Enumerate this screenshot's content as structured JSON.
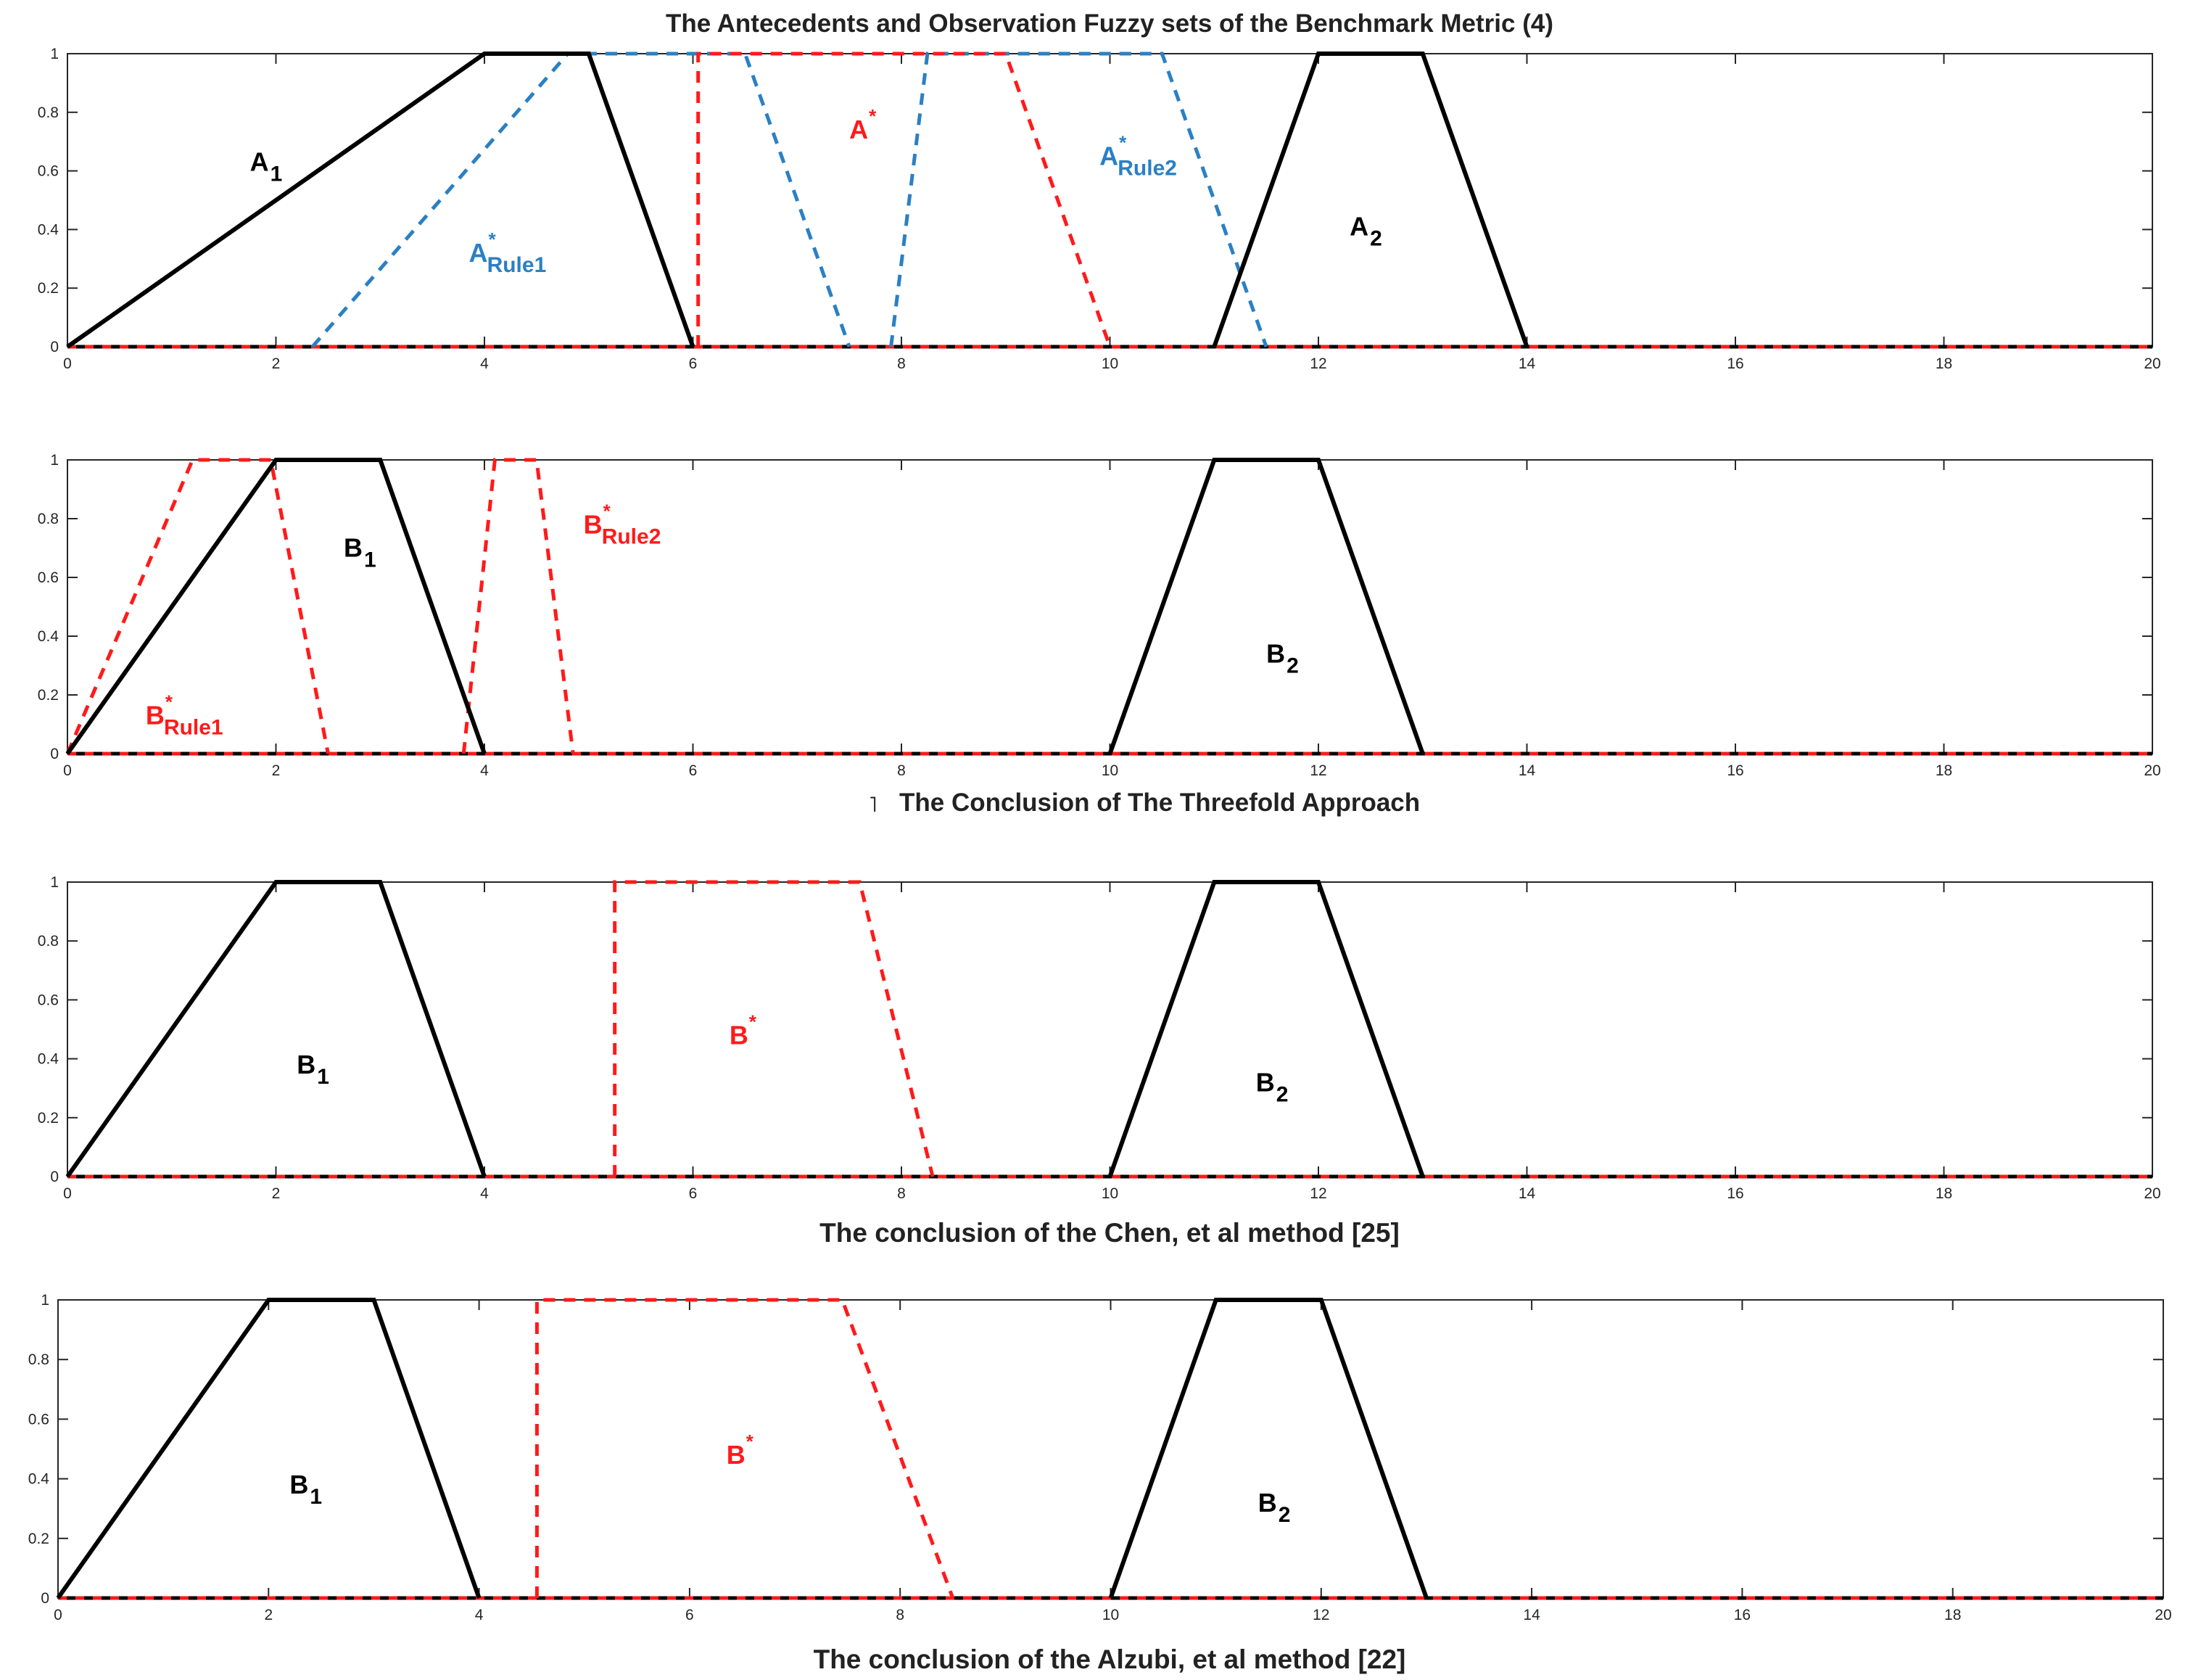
{
  "figure_title": "The Antecedents and Observation Fuzzy sets of the Benchmark Metric (4)",
  "colors": {
    "black_line": "#000000",
    "red_line": "#ff1a1a",
    "blue_line": "#2a80c4",
    "axis": "#262626"
  },
  "chart_data": [
    {
      "type": "line",
      "title": "The Antecedents and Observation Fuzzy sets of the Benchmark Metric (4)",
      "xlim": [
        0,
        20
      ],
      "ylim": [
        0,
        1
      ],
      "x_ticks": [
        "0",
        "2",
        "4",
        "6",
        "8",
        "10",
        "12",
        "14",
        "16",
        "18",
        "20"
      ],
      "y_ticks": [
        "0",
        "0.2",
        "0.4",
        "0.6",
        "0.8",
        "1"
      ],
      "series": [
        {
          "key": "A1",
          "style": "solid",
          "color": "black",
          "x": [
            0,
            4,
            5,
            6
          ],
          "y": [
            0,
            1,
            1,
            0
          ]
        },
        {
          "key": "A2",
          "style": "solid",
          "color": "black",
          "x": [
            11,
            12,
            13,
            14
          ],
          "y": [
            0,
            1,
            1,
            0
          ]
        },
        {
          "key": "A*Rule1",
          "style": "dashed",
          "color": "blue",
          "x": [
            2.35,
            4.8,
            6.5,
            7.5
          ],
          "y": [
            0,
            1,
            1,
            0
          ]
        },
        {
          "key": "A*Rule2",
          "style": "dashed",
          "color": "blue",
          "x": [
            7.9,
            8.25,
            10.5,
            11.5
          ],
          "y": [
            0,
            1,
            1,
            0
          ]
        },
        {
          "key": "A*",
          "style": "dashed",
          "color": "red",
          "x": [
            6.05,
            6.05,
            9.0,
            10.0
          ],
          "y": [
            0,
            1,
            1,
            0
          ]
        }
      ],
      "baseline": {
        "x": [
          0,
          20
        ],
        "y": [
          0,
          0
        ]
      },
      "labels": [
        {
          "main": "A",
          "sub": "1",
          "sup": "",
          "color": "black",
          "x": 1.75,
          "y": 0.6
        },
        {
          "main": "A",
          "sub": "2",
          "sup": "",
          "color": "black",
          "x": 12.3,
          "y": 0.38
        },
        {
          "main": "A",
          "sub": "Rule1",
          "sup": "*",
          "color": "blue",
          "x": 3.85,
          "y": 0.29
        },
        {
          "main": "A",
          "sub": "Rule2",
          "sup": "*",
          "color": "blue",
          "x": 9.9,
          "y": 0.62
        },
        {
          "main": "A",
          "sub": "",
          "sup": "*",
          "color": "red",
          "x": 7.5,
          "y": 0.71
        }
      ]
    },
    {
      "type": "line",
      "title": "",
      "xlim": [
        0,
        20
      ],
      "ylim": [
        0,
        1
      ],
      "x_ticks": [
        "0",
        "2",
        "4",
        "6",
        "8",
        "10",
        "12",
        "14",
        "16",
        "18",
        "20"
      ],
      "y_ticks": [
        "0",
        "0.2",
        "0.4",
        "0.6",
        "0.8",
        "1"
      ],
      "series": [
        {
          "key": "B1",
          "style": "solid",
          "color": "black",
          "x": [
            0,
            2,
            3,
            4
          ],
          "y": [
            0,
            1,
            1,
            0
          ]
        },
        {
          "key": "B2",
          "style": "solid",
          "color": "black",
          "x": [
            10,
            11,
            12,
            13
          ],
          "y": [
            0,
            1,
            1,
            0
          ]
        },
        {
          "key": "B*Rule1",
          "style": "dashed",
          "color": "red",
          "x": [
            0,
            1.2,
            1.95,
            2.5
          ],
          "y": [
            0,
            1,
            1,
            0
          ]
        },
        {
          "key": "B*Rule2",
          "style": "dashed",
          "color": "red",
          "x": [
            3.8,
            4.1,
            4.5,
            4.85
          ],
          "y": [
            0,
            1,
            1,
            0
          ]
        }
      ],
      "baseline": {
        "x": [
          0,
          20
        ],
        "y": [
          0,
          0
        ]
      },
      "labels": [
        {
          "main": "B",
          "sub": "1",
          "sup": "",
          "color": "black",
          "x": 2.65,
          "y": 0.67
        },
        {
          "main": "B",
          "sub": "2",
          "sup": "",
          "color": "black",
          "x": 11.5,
          "y": 0.31
        },
        {
          "main": "B",
          "sub": "Rule1",
          "sup": "*",
          "color": "red",
          "x": 0.75,
          "y": 0.1
        },
        {
          "main": "B",
          "sub": "Rule2",
          "sup": "*",
          "color": "red",
          "x": 4.95,
          "y": 0.75
        }
      ]
    },
    {
      "type": "line",
      "title": "The Conclusion of The Threefold Approach",
      "xlim": [
        0,
        20
      ],
      "ylim": [
        0,
        1
      ],
      "x_ticks": [
        "0",
        "2",
        "4",
        "6",
        "8",
        "10",
        "12",
        "14",
        "16",
        "18",
        "20"
      ],
      "y_ticks": [
        "0",
        "0.2",
        "0.4",
        "0.6",
        "0.8",
        "1"
      ],
      "series": [
        {
          "key": "B1",
          "style": "solid",
          "color": "black",
          "x": [
            0,
            2,
            3,
            4
          ],
          "y": [
            0,
            1,
            1,
            0
          ]
        },
        {
          "key": "B2",
          "style": "solid",
          "color": "black",
          "x": [
            10,
            11,
            12,
            13
          ],
          "y": [
            0,
            1,
            1,
            0
          ]
        },
        {
          "key": "B*",
          "style": "dashed",
          "color": "red",
          "x": [
            5.25,
            5.25,
            7.6,
            8.3
          ],
          "y": [
            0,
            1,
            1,
            0
          ]
        }
      ],
      "baseline": {
        "x": [
          0,
          20
        ],
        "y": [
          0,
          0
        ]
      },
      "labels": [
        {
          "main": "B",
          "sub": "1",
          "sup": "",
          "color": "black",
          "x": 2.2,
          "y": 0.35
        },
        {
          "main": "B",
          "sub": "2",
          "sup": "",
          "color": "black",
          "x": 11.4,
          "y": 0.29
        },
        {
          "main": "B",
          "sub": "",
          "sup": "*",
          "color": "red",
          "x": 6.35,
          "y": 0.45
        }
      ]
    },
    {
      "type": "line",
      "title": "The conclusion of the Chen, et al method  [25]",
      "xlim": [
        0,
        20
      ],
      "ylim": [
        0,
        1
      ],
      "x_ticks": [
        "0",
        "2",
        "4",
        "6",
        "8",
        "10",
        "12",
        "14",
        "16",
        "18",
        "20"
      ],
      "y_ticks": [
        "0",
        "0.2",
        "0.4",
        "0.6",
        "0.8",
        "1"
      ],
      "series": [
        {
          "key": "B1",
          "style": "solid",
          "color": "black",
          "x": [
            0,
            2,
            3,
            4
          ],
          "y": [
            0,
            1,
            1,
            0
          ]
        },
        {
          "key": "B2",
          "style": "solid",
          "color": "black",
          "x": [
            10,
            11,
            12,
            13
          ],
          "y": [
            0,
            1,
            1,
            0
          ]
        },
        {
          "key": "B*",
          "style": "dashed",
          "color": "red",
          "x": [
            4.55,
            4.55,
            7.45,
            8.5
          ],
          "y": [
            0,
            1,
            1,
            0
          ]
        }
      ],
      "baseline": {
        "x": [
          0,
          20
        ],
        "y": [
          0,
          0
        ]
      },
      "labels": [
        {
          "main": "B",
          "sub": "1",
          "sup": "",
          "color": "black",
          "x": 2.2,
          "y": 0.35
        },
        {
          "main": "B",
          "sub": "2",
          "sup": "",
          "color": "black",
          "x": 11.4,
          "y": 0.29
        },
        {
          "main": "B",
          "sub": "",
          "sup": "*",
          "color": "red",
          "x": 6.35,
          "y": 0.45
        }
      ]
    }
  ],
  "bottom_caption": "The conclusion of the Alzubi, et al method  [22]"
}
